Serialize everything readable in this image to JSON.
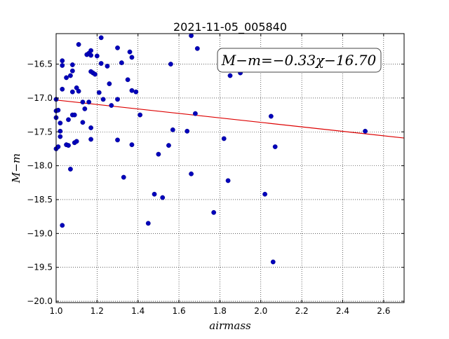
{
  "chart_data": {
    "type": "scatter",
    "title": "2021-11-05_005840",
    "xlabel": "airmass",
    "ylabel": "M−m",
    "xlim": [
      1.0,
      2.7
    ],
    "ylim": [
      -20.02,
      -16.05
    ],
    "xticks": [
      1.0,
      1.2,
      1.4,
      1.6,
      1.8,
      2.0,
      2.2,
      2.4,
      2.6
    ],
    "yticks": [
      -20.0,
      -19.5,
      -19.0,
      -18.5,
      -18.0,
      -17.5,
      -17.0,
      -16.5
    ],
    "xtick_labels": [
      "1.0",
      "1.2",
      "1.4",
      "1.6",
      "1.8",
      "2.0",
      "2.2",
      "2.4",
      "2.6"
    ],
    "ytick_labels": [
      "−20.0",
      "−19.5",
      "−19.0",
      "−18.5",
      "−18.0",
      "−17.5",
      "−17.0",
      "−16.5"
    ],
    "grid": true,
    "annotation": {
      "text": "M−m=−0.33χ−16.70",
      "placement": "top-right"
    },
    "marker_color": "#0000bb",
    "fit_color": "#dd0000",
    "fit": {
      "slope": -0.33,
      "intercept": -16.7
    },
    "points": [
      {
        "x": 1.0,
        "y": -17.02
      },
      {
        "x": 1.0,
        "y": -17.19
      },
      {
        "x": 1.0,
        "y": -17.29
      },
      {
        "x": 1.0,
        "y": -17.75
      },
      {
        "x": 1.01,
        "y": -17.18
      },
      {
        "x": 1.01,
        "y": -17.72
      },
      {
        "x": 1.02,
        "y": -17.49
      },
      {
        "x": 1.02,
        "y": -17.57
      },
      {
        "x": 1.02,
        "y": -17.37
      },
      {
        "x": 1.03,
        "y": -16.45
      },
      {
        "x": 1.03,
        "y": -16.52
      },
      {
        "x": 1.03,
        "y": -16.87
      },
      {
        "x": 1.03,
        "y": -18.88
      },
      {
        "x": 1.05,
        "y": -16.7
      },
      {
        "x": 1.05,
        "y": -17.69
      },
      {
        "x": 1.06,
        "y": -17.7
      },
      {
        "x": 1.06,
        "y": -17.32
      },
      {
        "x": 1.07,
        "y": -16.67
      },
      {
        "x": 1.07,
        "y": -18.05
      },
      {
        "x": 1.08,
        "y": -16.51
      },
      {
        "x": 1.08,
        "y": -16.6
      },
      {
        "x": 1.08,
        "y": -16.91
      },
      {
        "x": 1.08,
        "y": -17.25
      },
      {
        "x": 1.09,
        "y": -17.25
      },
      {
        "x": 1.09,
        "y": -17.66
      },
      {
        "x": 1.1,
        "y": -17.64
      },
      {
        "x": 1.1,
        "y": -16.85
      },
      {
        "x": 1.11,
        "y": -16.21
      },
      {
        "x": 1.11,
        "y": -16.9
      },
      {
        "x": 1.13,
        "y": -17.06
      },
      {
        "x": 1.13,
        "y": -17.36
      },
      {
        "x": 1.14,
        "y": -17.16
      },
      {
        "x": 1.15,
        "y": -16.36
      },
      {
        "x": 1.16,
        "y": -16.34
      },
      {
        "x": 1.16,
        "y": -17.06
      },
      {
        "x": 1.17,
        "y": -16.3
      },
      {
        "x": 1.17,
        "y": -16.37
      },
      {
        "x": 1.17,
        "y": -17.44
      },
      {
        "x": 1.17,
        "y": -17.61
      },
      {
        "x": 1.17,
        "y": -16.61
      },
      {
        "x": 1.18,
        "y": -16.63
      },
      {
        "x": 1.19,
        "y": -16.65
      },
      {
        "x": 1.2,
        "y": -16.38
      },
      {
        "x": 1.21,
        "y": -16.92
      },
      {
        "x": 1.22,
        "y": -16.11
      },
      {
        "x": 1.22,
        "y": -16.49
      },
      {
        "x": 1.23,
        "y": -17.02
      },
      {
        "x": 1.25,
        "y": -16.53
      },
      {
        "x": 1.26,
        "y": -16.79
      },
      {
        "x": 1.27,
        "y": -17.11
      },
      {
        "x": 1.3,
        "y": -16.26
      },
      {
        "x": 1.3,
        "y": -17.02
      },
      {
        "x": 1.3,
        "y": -17.62
      },
      {
        "x": 1.32,
        "y": -16.48
      },
      {
        "x": 1.33,
        "y": -18.17
      },
      {
        "x": 1.35,
        "y": -16.73
      },
      {
        "x": 1.36,
        "y": -16.32
      },
      {
        "x": 1.37,
        "y": -16.4
      },
      {
        "x": 1.37,
        "y": -16.89
      },
      {
        "x": 1.37,
        "y": -17.69
      },
      {
        "x": 1.39,
        "y": -16.91
      },
      {
        "x": 1.41,
        "y": -17.25
      },
      {
        "x": 1.45,
        "y": -18.85
      },
      {
        "x": 1.48,
        "y": -18.42
      },
      {
        "x": 1.5,
        "y": -17.83
      },
      {
        "x": 1.52,
        "y": -18.47
      },
      {
        "x": 1.55,
        "y": -17.7
      },
      {
        "x": 1.56,
        "y": -16.5
      },
      {
        "x": 1.57,
        "y": -17.47
      },
      {
        "x": 1.64,
        "y": -17.49
      },
      {
        "x": 1.66,
        "y": -16.08
      },
      {
        "x": 1.66,
        "y": -18.12
      },
      {
        "x": 1.68,
        "y": -17.23
      },
      {
        "x": 1.69,
        "y": -16.27
      },
      {
        "x": 1.77,
        "y": -18.69
      },
      {
        "x": 1.82,
        "y": -17.6
      },
      {
        "x": 1.84,
        "y": -18.22
      },
      {
        "x": 1.85,
        "y": -16.67
      },
      {
        "x": 1.9,
        "y": -16.63
      },
      {
        "x": 2.02,
        "y": -18.42
      },
      {
        "x": 2.05,
        "y": -17.27
      },
      {
        "x": 2.06,
        "y": -19.42
      },
      {
        "x": 2.07,
        "y": -17.72
      },
      {
        "x": 2.51,
        "y": -17.49
      }
    ]
  }
}
